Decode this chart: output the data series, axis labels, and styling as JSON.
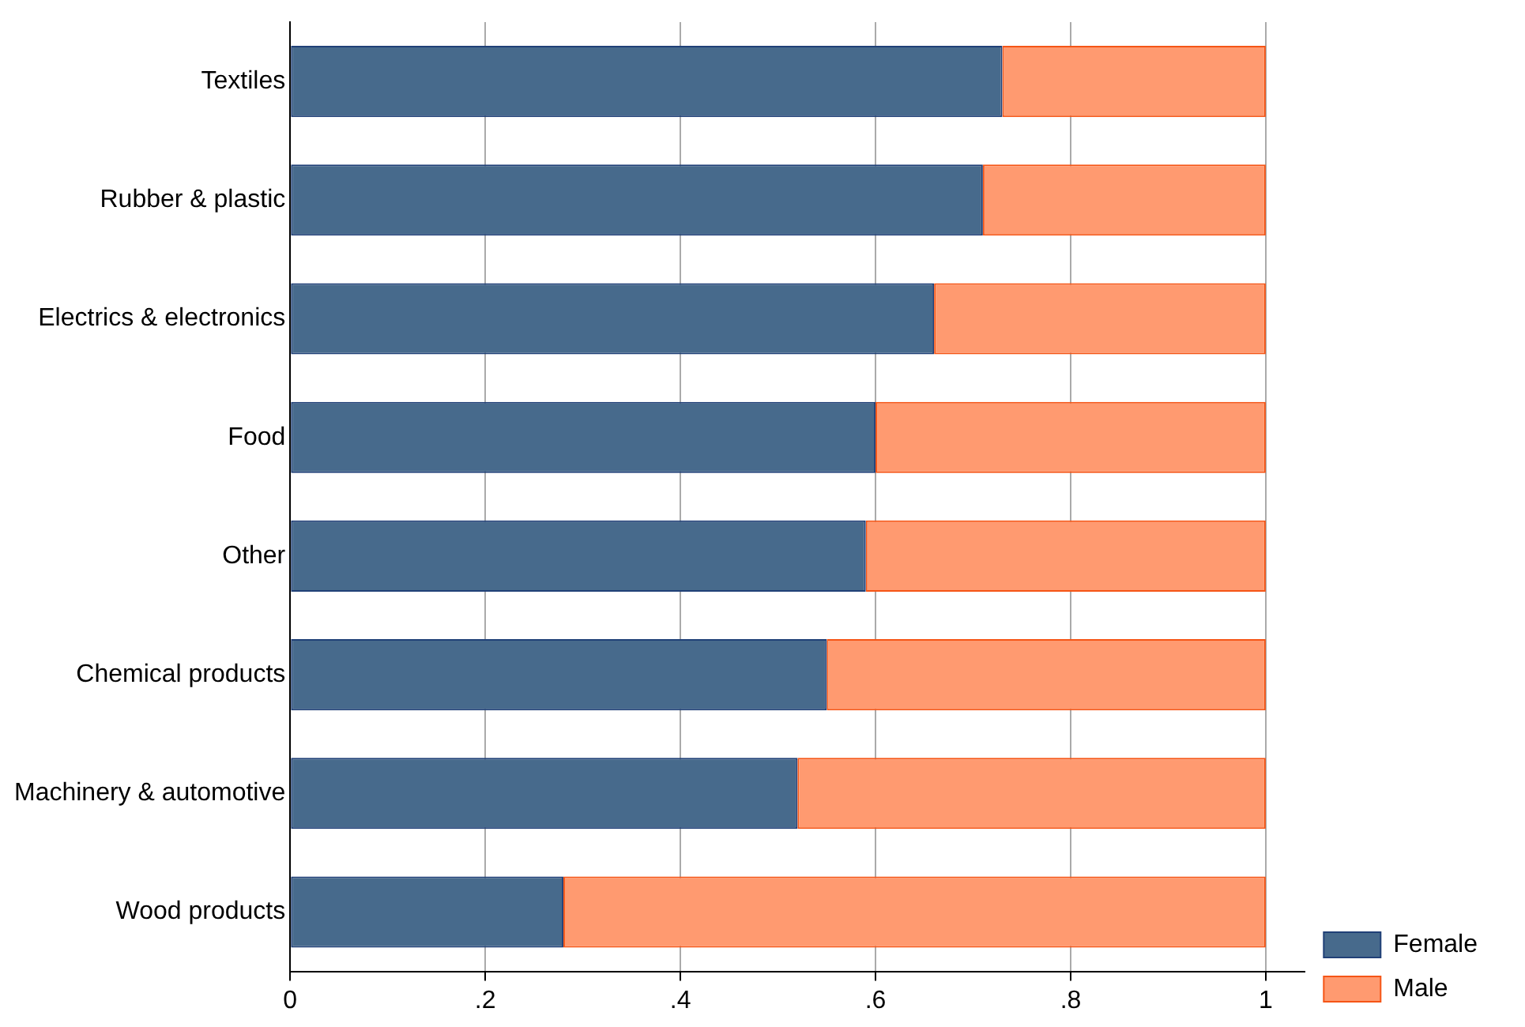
{
  "chart_data": {
    "type": "bar",
    "orientation": "horizontal",
    "stacked": true,
    "categories": [
      "Textiles",
      "Rubber & plastic",
      "Electrics & electronics",
      "Food",
      "Other",
      "Chemical products",
      "Machinery & automotive",
      "Wood products"
    ],
    "series": [
      {
        "name": "Female",
        "color": "#476a8c",
        "values": [
          0.73,
          0.71,
          0.66,
          0.6,
          0.59,
          0.55,
          0.52,
          0.28
        ]
      },
      {
        "name": "Male",
        "color": "#ff9a70",
        "values": [
          0.27,
          0.29,
          0.34,
          0.4,
          0.41,
          0.45,
          0.48,
          0.72
        ]
      }
    ],
    "xlim": [
      0,
      1.04
    ],
    "xticks": [
      0,
      {
        "value": 0.2,
        "label": ".2"
      },
      {
        "value": 0.4,
        "label": ".4"
      },
      {
        "value": 0.6,
        "label": ".6"
      },
      {
        "value": 0.8,
        "label": ".8"
      },
      1
    ],
    "grid": "x",
    "legend": "bottom right"
  }
}
